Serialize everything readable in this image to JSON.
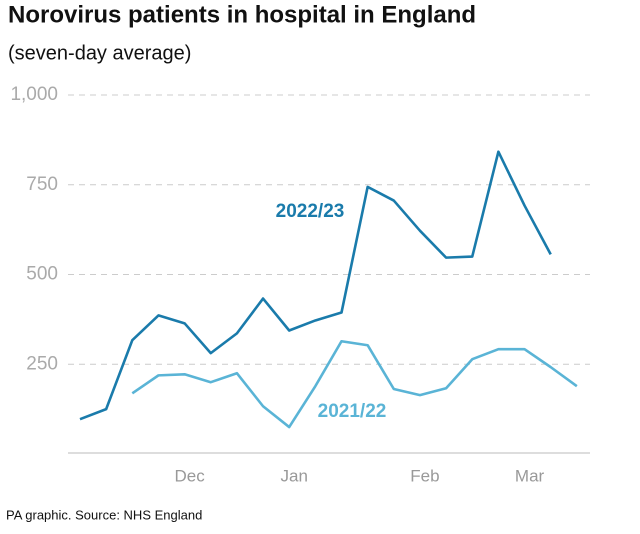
{
  "chart_data": {
    "type": "line",
    "title": "Norovirus patients in hospital in England",
    "subtitle": "(seven-day average)",
    "source": "PA graphic. Source: NHS England",
    "categories": [
      null,
      null,
      null,
      null,
      "Dec",
      null,
      null,
      null,
      "Jan",
      null,
      null,
      null,
      null,
      "Feb",
      null,
      null,
      null,
      "Mar",
      null,
      null
    ],
    "series": [
      {
        "name": "2022/23",
        "color": "#1a7bab",
        "values": [
          97,
          125,
          317,
          386,
          364,
          281,
          336,
          433,
          344,
          372,
          394,
          744,
          706,
          622,
          547,
          550,
          842,
          692,
          556,
          null
        ]
      },
      {
        "name": "2021/22",
        "color": "#5ab4d6",
        "values": [
          null,
          null,
          169,
          219,
          222,
          200,
          225,
          133,
          75,
          189,
          314,
          303,
          181,
          164,
          183,
          264,
          292,
          292,
          242,
          189
        ]
      }
    ],
    "ylim": [
      0,
      1000
    ],
    "yticks": [
      250,
      500,
      750,
      {
        "value": 1000,
        "label": "1,000"
      }
    ],
    "grid": true
  }
}
